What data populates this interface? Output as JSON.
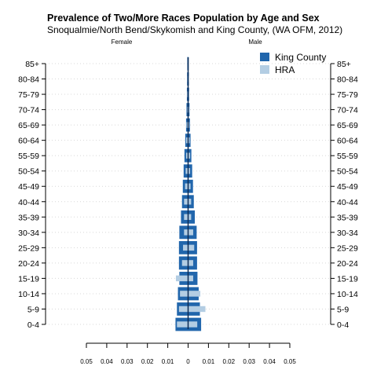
{
  "chart_data": {
    "type": "bar",
    "title": "Prevalence of Two/More Races Population by Age and Sex",
    "subtitle": "Snoqualmie/North Bend/Skykomish and King County, (WA OFM, 2012)",
    "left_label": "Female",
    "right_label": "Male",
    "categories": [
      "0-4",
      "5-9",
      "10-14",
      "15-19",
      "20-24",
      "25-29",
      "30-34",
      "35-39",
      "40-44",
      "45-49",
      "50-54",
      "55-59",
      "60-64",
      "65-69",
      "70-74",
      "75-79",
      "80-84",
      "85+"
    ],
    "series": [
      {
        "name": "King County",
        "color": "#2166ac",
        "female": [
          0.0062,
          0.0055,
          0.005,
          0.0043,
          0.0045,
          0.0045,
          0.0043,
          0.0035,
          0.003,
          0.0026,
          0.0022,
          0.0018,
          0.0014,
          0.001,
          0.0008,
          0.0006,
          0.0005,
          0.0004
        ],
        "male": [
          0.0064,
          0.0058,
          0.0052,
          0.0046,
          0.0044,
          0.0044,
          0.0042,
          0.0033,
          0.0028,
          0.0024,
          0.002,
          0.0016,
          0.0012,
          0.0009,
          0.0007,
          0.0005,
          0.0004,
          0.0003
        ]
      },
      {
        "name": "HRA",
        "color": "#b3cde3",
        "female": [
          0.0055,
          0.0045,
          0.004,
          0.006,
          0.003,
          0.0025,
          0.002,
          0.002,
          0.002,
          0.0015,
          0.0012,
          0.001,
          0.001,
          0.0008,
          0.0005,
          0.0005,
          0.0003,
          0.0002
        ],
        "male": [
          0.0045,
          0.0085,
          0.006,
          0.0025,
          0.0025,
          0.003,
          0.0025,
          0.0015,
          0.0015,
          0.0012,
          0.001,
          0.001,
          0.0008,
          0.0006,
          0.0005,
          0.0004,
          0.0003,
          0.0002
        ]
      }
    ],
    "xlim": [
      -0.05,
      0.05
    ],
    "xticks": [
      -0.05,
      -0.04,
      -0.03,
      -0.02,
      -0.01,
      0,
      0.01,
      0.02,
      0.03,
      0.04,
      0.05
    ],
    "xtick_labels": [
      "0.05",
      "0.04",
      "0.03",
      "0.02",
      "0.01",
      "0",
      "0.01",
      "0.02",
      "0.03",
      "0.04",
      "0.05"
    ],
    "grid": true,
    "legend_position": "top-right"
  }
}
